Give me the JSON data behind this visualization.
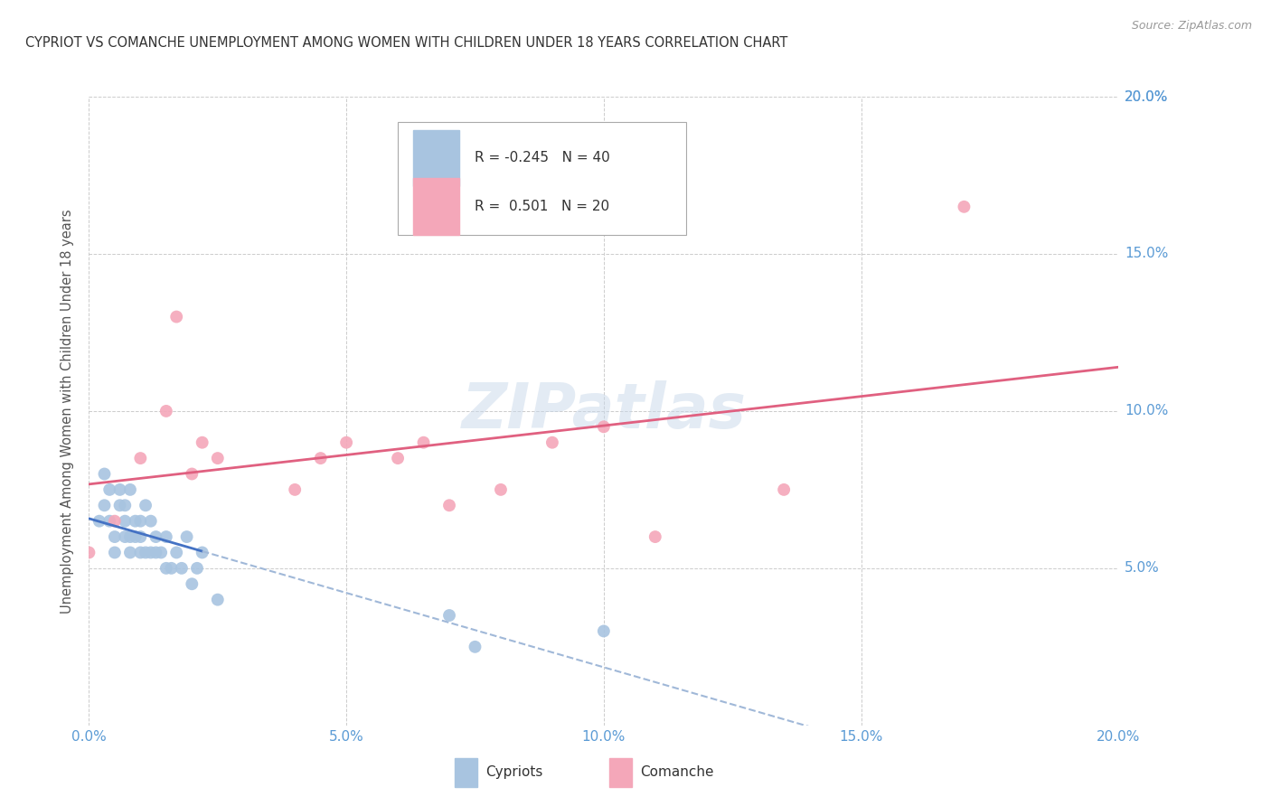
{
  "title": "CYPRIOT VS COMANCHE UNEMPLOYMENT AMONG WOMEN WITH CHILDREN UNDER 18 YEARS CORRELATION CHART",
  "source": "Source: ZipAtlas.com",
  "ylabel": "Unemployment Among Women with Children Under 18 years",
  "xlim": [
    0.0,
    0.2
  ],
  "ylim": [
    0.0,
    0.2
  ],
  "xtick_vals": [
    0.0,
    0.05,
    0.1,
    0.15,
    0.2
  ],
  "xtick_labels": [
    "0.0%",
    "5.0%",
    "10.0%",
    "15.0%",
    "20.0%"
  ],
  "ytick_vals": [
    0.05,
    0.1,
    0.15,
    0.2
  ],
  "ytick_labels": [
    "5.0%",
    "10.0%",
    "15.0%",
    "20.0%"
  ],
  "cypriot_color": "#a8c4e0",
  "comanche_color": "#f4a7b9",
  "trend_cyp_solid_color": "#4472c4",
  "trend_cyp_dash_color": "#a0b8d8",
  "trend_com_color": "#e06080",
  "cypriot_R": -0.245,
  "cypriot_N": 40,
  "comanche_R": 0.501,
  "comanche_N": 20,
  "watermark": "ZIPatlas",
  "tick_color": "#5b9bd5",
  "cypriot_x": [
    0.002,
    0.003,
    0.003,
    0.004,
    0.004,
    0.005,
    0.005,
    0.006,
    0.006,
    0.007,
    0.007,
    0.007,
    0.008,
    0.008,
    0.008,
    0.009,
    0.009,
    0.01,
    0.01,
    0.01,
    0.011,
    0.011,
    0.012,
    0.012,
    0.013,
    0.013,
    0.014,
    0.015,
    0.015,
    0.016,
    0.017,
    0.018,
    0.019,
    0.02,
    0.021,
    0.022,
    0.025,
    0.07,
    0.075,
    0.1
  ],
  "cypriot_y": [
    0.065,
    0.07,
    0.08,
    0.065,
    0.075,
    0.055,
    0.06,
    0.07,
    0.075,
    0.06,
    0.065,
    0.07,
    0.055,
    0.06,
    0.075,
    0.06,
    0.065,
    0.055,
    0.06,
    0.065,
    0.055,
    0.07,
    0.055,
    0.065,
    0.055,
    0.06,
    0.055,
    0.05,
    0.06,
    0.05,
    0.055,
    0.05,
    0.06,
    0.045,
    0.05,
    0.055,
    0.04,
    0.035,
    0.025,
    0.03
  ],
  "comanche_x": [
    0.0,
    0.005,
    0.01,
    0.015,
    0.017,
    0.02,
    0.022,
    0.025,
    0.04,
    0.045,
    0.05,
    0.06,
    0.065,
    0.07,
    0.08,
    0.09,
    0.1,
    0.11,
    0.135,
    0.17
  ],
  "comanche_y": [
    0.055,
    0.065,
    0.085,
    0.1,
    0.13,
    0.08,
    0.09,
    0.085,
    0.075,
    0.085,
    0.09,
    0.085,
    0.09,
    0.07,
    0.075,
    0.09,
    0.095,
    0.06,
    0.075,
    0.165
  ]
}
